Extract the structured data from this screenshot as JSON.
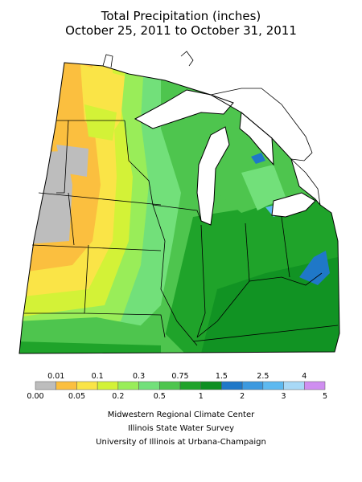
{
  "title_line1": "Total Precipitation (inches)",
  "title_line2": "October 25, 2011 to October 31, 2011",
  "legend": {
    "bins": [
      {
        "color": "#bdbdbd",
        "lower": "0.00",
        "upper": "0.01"
      },
      {
        "color": "#fbbf3f",
        "lower": "0.01",
        "upper": "0.05"
      },
      {
        "color": "#fae447",
        "lower": "0.05",
        "upper": "0.1"
      },
      {
        "color": "#d3f237",
        "lower": "0.1",
        "upper": "0.2"
      },
      {
        "color": "#99ed59",
        "lower": "0.2",
        "upper": "0.3"
      },
      {
        "color": "#72e07a",
        "lower": "0.3",
        "upper": "0.5"
      },
      {
        "color": "#4ec54e",
        "lower": "0.5",
        "upper": "0.75"
      },
      {
        "color": "#1fa32a",
        "lower": "0.75",
        "upper": "1"
      },
      {
        "color": "#0e8f22",
        "lower": "1",
        "upper": "1.5"
      },
      {
        "color": "#1f78c8",
        "lower": "1.5",
        "upper": "2"
      },
      {
        "color": "#3c99df",
        "lower": "2",
        "upper": "2.5"
      },
      {
        "color": "#5db9f0",
        "lower": "2.5",
        "upper": "3"
      },
      {
        "color": "#a8d9f7",
        "lower": "3",
        "upper": "4"
      },
      {
        "color": "#cf8ef0",
        "lower": "4",
        "upper": "5"
      }
    ],
    "top_labels": [
      "0.01",
      "0.1",
      "0.3",
      "0.75",
      "1.5",
      "2.5",
      "4"
    ],
    "bottom_labels": [
      "0.00",
      "0.05",
      "0.2",
      "0.5",
      "1",
      "2",
      "3",
      "5"
    ]
  },
  "credits": {
    "line1": "Midwestern Regional Climate Center",
    "line2": "Illinois State Water Survey",
    "line3": "University of Illinois at Urbana-Champaign"
  }
}
